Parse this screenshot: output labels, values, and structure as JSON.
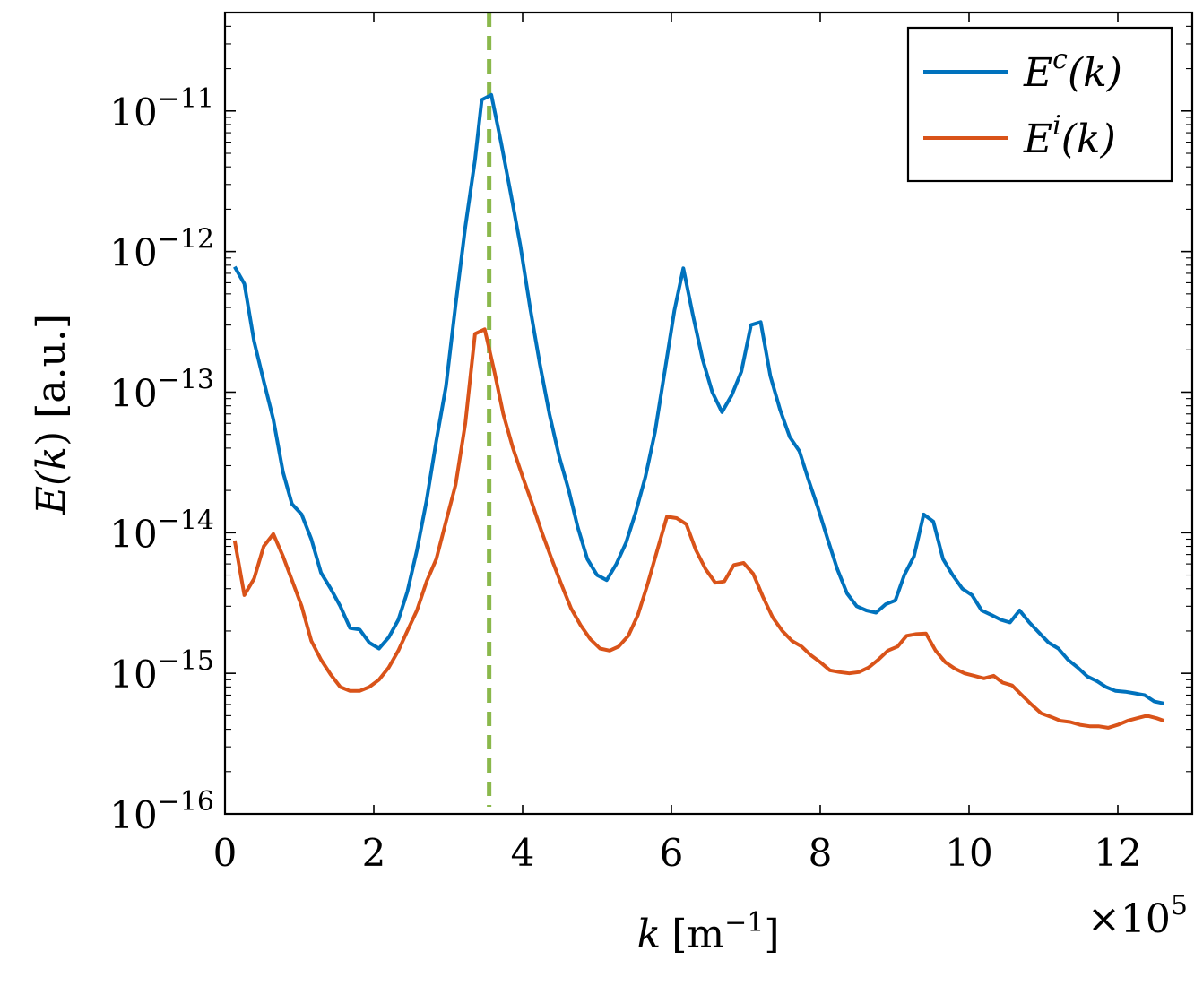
{
  "chart_data": {
    "type": "line",
    "title": "",
    "xlabel": {
      "symbol": "k",
      "unit_text": "[m",
      "unit_exp": "−1",
      "unit_close": "]"
    },
    "ylabel": {
      "before": "E(",
      "var": "k",
      "after": ") [a.u.]"
    },
    "x_multiplier": {
      "prefix": "×10",
      "exp": "5"
    },
    "xlim": [
      0,
      13
    ],
    "ylim_log10": [
      -16,
      -10.3
    ],
    "y_scale": "log",
    "grid": false,
    "legend_position": "top-right",
    "x_ticks": [
      0,
      2,
      4,
      6,
      8,
      10,
      12
    ],
    "x_tick_labels": [
      "0",
      "2",
      "4",
      "6",
      "8",
      "10",
      "12"
    ],
    "y_ticks_log10": [
      -16,
      -15,
      -14,
      -13,
      -12,
      -11
    ],
    "y_tick_labels": [
      {
        "base": "10",
        "exp": "−16"
      },
      {
        "base": "10",
        "exp": "−15"
      },
      {
        "base": "10",
        "exp": "−14"
      },
      {
        "base": "10",
        "exp": "−13"
      },
      {
        "base": "10",
        "exp": "−12"
      },
      {
        "base": "10",
        "exp": "−11"
      }
    ],
    "vertical_line": {
      "x": 3.55,
      "color": "#8AB84B",
      "style": "dashed"
    },
    "series": [
      {
        "legend_text": {
          "base": "E",
          "sup": "c",
          "tail": "(k)"
        },
        "color": "#0072BD",
        "points": [
          [
            0.13,
            7.8e-13
          ],
          [
            0.26,
            5.9e-13
          ],
          [
            0.39,
            2.3e-13
          ],
          [
            0.52,
            1.2e-13
          ],
          [
            0.65,
            6.4e-14
          ],
          [
            0.78,
            2.7e-14
          ],
          [
            0.9,
            1.6e-14
          ],
          [
            1.03,
            1.35e-14
          ],
          [
            1.16,
            9e-15
          ],
          [
            1.29,
            5.2e-15
          ],
          [
            1.42,
            4e-15
          ],
          [
            1.55,
            3e-15
          ],
          [
            1.68,
            2.1e-15
          ],
          [
            1.81,
            2.05e-15
          ],
          [
            1.94,
            1.65e-15
          ],
          [
            2.07,
            1.5e-15
          ],
          [
            2.2,
            1.8e-15
          ],
          [
            2.33,
            2.4e-15
          ],
          [
            2.45,
            3.8e-15
          ],
          [
            2.58,
            7.5e-15
          ],
          [
            2.71,
            1.7e-14
          ],
          [
            2.84,
            4.5e-14
          ],
          [
            2.97,
            1.1e-13
          ],
          [
            3.1,
            4.2e-13
          ],
          [
            3.23,
            1.5e-12
          ],
          [
            3.36,
            4.5e-12
          ],
          [
            3.45,
            1.2e-11
          ],
          [
            3.58,
            1.3e-11
          ],
          [
            3.71,
            6e-12
          ],
          [
            3.84,
            2.6e-12
          ],
          [
            3.97,
            1.1e-12
          ],
          [
            4.1,
            4e-13
          ],
          [
            4.23,
            1.6e-13
          ],
          [
            4.36,
            7e-14
          ],
          [
            4.49,
            3.5e-14
          ],
          [
            4.62,
            2e-14
          ],
          [
            4.74,
            1.1e-14
          ],
          [
            4.87,
            6.5e-15
          ],
          [
            5.0,
            5e-15
          ],
          [
            5.13,
            4.6e-15
          ],
          [
            5.26,
            6e-15
          ],
          [
            5.39,
            8.5e-15
          ],
          [
            5.52,
            1.4e-14
          ],
          [
            5.65,
            2.5e-14
          ],
          [
            5.78,
            5.2e-14
          ],
          [
            5.91,
            1.4e-13
          ],
          [
            6.04,
            3.8e-13
          ],
          [
            6.16,
            7.6e-13
          ],
          [
            6.29,
            3.5e-13
          ],
          [
            6.42,
            1.7e-13
          ],
          [
            6.55,
            1e-13
          ],
          [
            6.68,
            7.2e-14
          ],
          [
            6.81,
            9.5e-14
          ],
          [
            6.94,
            1.4e-13
          ],
          [
            7.07,
            3e-13
          ],
          [
            7.2,
            3.15e-13
          ],
          [
            7.33,
            1.3e-13
          ],
          [
            7.46,
            7.5e-14
          ],
          [
            7.59,
            4.8e-14
          ],
          [
            7.72,
            3.8e-14
          ],
          [
            7.84,
            2.4e-14
          ],
          [
            7.97,
            1.5e-14
          ],
          [
            8.1,
            9e-15
          ],
          [
            8.23,
            5.5e-15
          ],
          [
            8.36,
            3.7e-15
          ],
          [
            8.49,
            3e-15
          ],
          [
            8.62,
            2.8e-15
          ],
          [
            8.75,
            2.7e-15
          ],
          [
            8.88,
            3.1e-15
          ],
          [
            9.01,
            3.3e-15
          ],
          [
            9.13,
            5e-15
          ],
          [
            9.26,
            6.8e-15
          ],
          [
            9.39,
            1.35e-14
          ],
          [
            9.52,
            1.2e-14
          ],
          [
            9.65,
            6.5e-15
          ],
          [
            9.78,
            5e-15
          ],
          [
            9.91,
            4e-15
          ],
          [
            10.04,
            3.6e-15
          ],
          [
            10.17,
            2.8e-15
          ],
          [
            10.3,
            2.6e-15
          ],
          [
            10.43,
            2.4e-15
          ],
          [
            10.55,
            2.3e-15
          ],
          [
            10.68,
            2.8e-15
          ],
          [
            10.81,
            2.3e-15
          ],
          [
            10.94,
            1.95e-15
          ],
          [
            11.07,
            1.65e-15
          ],
          [
            11.2,
            1.5e-15
          ],
          [
            11.33,
            1.25e-15
          ],
          [
            11.46,
            1.1e-15
          ],
          [
            11.59,
            9.5e-16
          ],
          [
            11.72,
            8.8e-16
          ],
          [
            11.84,
            8e-16
          ],
          [
            11.97,
            7.5e-16
          ],
          [
            12.1,
            7.4e-16
          ],
          [
            12.23,
            7.2e-16
          ],
          [
            12.36,
            7e-16
          ],
          [
            12.49,
            6.3e-16
          ],
          [
            12.62,
            6.1e-16
          ]
        ]
      },
      {
        "legend_text": {
          "base": "E",
          "sup": "i",
          "tail": "(k)"
        },
        "color": "#D95319",
        "points": [
          [
            0.13,
            8.8e-15
          ],
          [
            0.26,
            3.6e-15
          ],
          [
            0.39,
            4.7e-15
          ],
          [
            0.52,
            8e-15
          ],
          [
            0.65,
            9.8e-15
          ],
          [
            0.78,
            6.8e-15
          ],
          [
            0.9,
            4.6e-15
          ],
          [
            1.03,
            3e-15
          ],
          [
            1.16,
            1.7e-15
          ],
          [
            1.29,
            1.25e-15
          ],
          [
            1.42,
            9.8e-16
          ],
          [
            1.55,
            8e-16
          ],
          [
            1.68,
            7.5e-16
          ],
          [
            1.81,
            7.5e-16
          ],
          [
            1.94,
            8e-16
          ],
          [
            2.07,
            9e-16
          ],
          [
            2.2,
            1.1e-15
          ],
          [
            2.33,
            1.45e-15
          ],
          [
            2.45,
            2e-15
          ],
          [
            2.58,
            2.8e-15
          ],
          [
            2.71,
            4.5e-15
          ],
          [
            2.84,
            6.5e-15
          ],
          [
            2.97,
            1.2e-14
          ],
          [
            3.1,
            2.2e-14
          ],
          [
            3.23,
            6e-14
          ],
          [
            3.36,
            2.6e-13
          ],
          [
            3.49,
            2.8e-13
          ],
          [
            3.62,
            1.4e-13
          ],
          [
            3.74,
            7e-14
          ],
          [
            3.87,
            4e-14
          ],
          [
            4.0,
            2.5e-14
          ],
          [
            4.13,
            1.6e-14
          ],
          [
            4.26,
            1e-14
          ],
          [
            4.39,
            6.5e-15
          ],
          [
            4.52,
            4.3e-15
          ],
          [
            4.65,
            2.9e-15
          ],
          [
            4.78,
            2.2e-15
          ],
          [
            4.91,
            1.75e-15
          ],
          [
            5.04,
            1.5e-15
          ],
          [
            5.17,
            1.45e-15
          ],
          [
            5.29,
            1.55e-15
          ],
          [
            5.42,
            1.85e-15
          ],
          [
            5.55,
            2.6e-15
          ],
          [
            5.68,
            4.3e-15
          ],
          [
            5.81,
            7.5e-15
          ],
          [
            5.94,
            1.3e-14
          ],
          [
            6.07,
            1.27e-14
          ],
          [
            6.2,
            1.15e-14
          ],
          [
            6.33,
            7.5e-15
          ],
          [
            6.46,
            5.5e-15
          ],
          [
            6.59,
            4.4e-15
          ],
          [
            6.71,
            4.5e-15
          ],
          [
            6.84,
            5.9e-15
          ],
          [
            6.97,
            6.1e-15
          ],
          [
            7.1,
            5.1e-15
          ],
          [
            7.23,
            3.5e-15
          ],
          [
            7.36,
            2.5e-15
          ],
          [
            7.49,
            2e-15
          ],
          [
            7.62,
            1.7e-15
          ],
          [
            7.75,
            1.55e-15
          ],
          [
            7.87,
            1.35e-15
          ],
          [
            8.0,
            1.2e-15
          ],
          [
            8.13,
            1.05e-15
          ],
          [
            8.26,
            1.02e-15
          ],
          [
            8.39,
            1e-15
          ],
          [
            8.52,
            1.02e-15
          ],
          [
            8.65,
            1.1e-15
          ],
          [
            8.78,
            1.25e-15
          ],
          [
            8.91,
            1.45e-15
          ],
          [
            9.04,
            1.55e-15
          ],
          [
            9.16,
            1.85e-15
          ],
          [
            9.29,
            1.9e-15
          ],
          [
            9.42,
            1.92e-15
          ],
          [
            9.55,
            1.45e-15
          ],
          [
            9.68,
            1.2e-15
          ],
          [
            9.81,
            1.08e-15
          ],
          [
            9.94,
            1e-15
          ],
          [
            10.07,
            9.6e-16
          ],
          [
            10.2,
            9.2e-16
          ],
          [
            10.33,
            9.6e-16
          ],
          [
            10.45,
            8.6e-16
          ],
          [
            10.58,
            8.2e-16
          ],
          [
            10.71,
            7e-16
          ],
          [
            10.84,
            6e-16
          ],
          [
            10.97,
            5.2e-16
          ],
          [
            11.1,
            4.9e-16
          ],
          [
            11.23,
            4.6e-16
          ],
          [
            11.36,
            4.5e-16
          ],
          [
            11.49,
            4.3e-16
          ],
          [
            11.62,
            4.2e-16
          ],
          [
            11.74,
            4.2e-16
          ],
          [
            11.87,
            4.1e-16
          ],
          [
            12.0,
            4.3e-16
          ],
          [
            12.13,
            4.6e-16
          ],
          [
            12.26,
            4.8e-16
          ],
          [
            12.39,
            5e-16
          ],
          [
            12.52,
            4.8e-16
          ],
          [
            12.62,
            4.6e-16
          ]
        ]
      }
    ]
  }
}
